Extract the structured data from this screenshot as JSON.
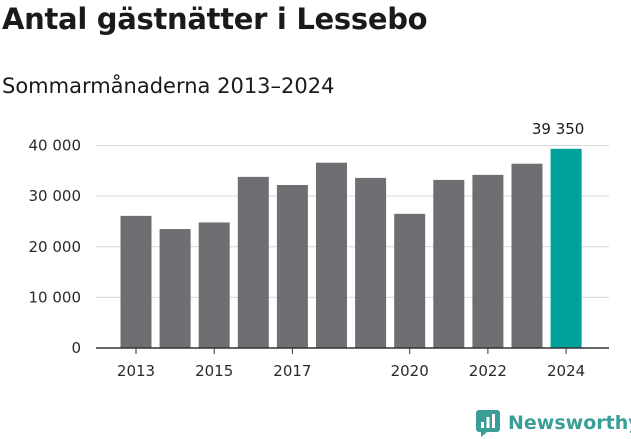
{
  "header": {
    "title": "Antal gästnätter i Lessebo",
    "subtitle": "Sommarmånaderna 2013–2024"
  },
  "brand": {
    "name": "Newsworthy",
    "logo_icon": "bar-chart-logo-icon",
    "color": "#3a9e96"
  },
  "colors": {
    "bar": "#6f6e73",
    "highlight": "#00a19a",
    "grid": "#d9d9d9",
    "axis": "#333333"
  },
  "chart_data": {
    "type": "bar",
    "categories": [
      "2013",
      "2014",
      "2015",
      "2016",
      "2017",
      "2018",
      "2019",
      "2020",
      "2021",
      "2022",
      "2023",
      "2024"
    ],
    "values": [
      26100,
      23500,
      24800,
      33800,
      32200,
      36600,
      33600,
      26500,
      33200,
      34200,
      36400,
      39350
    ],
    "x_tick_labels": [
      "2013",
      "",
      "2015",
      "",
      "2017",
      "",
      "",
      "2020",
      "",
      "2022",
      "",
      "2024"
    ],
    "y_ticks": [
      0,
      10000,
      20000,
      30000,
      40000
    ],
    "y_tick_labels": [
      "0",
      "10 000",
      "20 000",
      "30 000",
      "40 000"
    ],
    "ylim": [
      0,
      41000
    ],
    "highlight_index": 11,
    "highlight_label": "39 350",
    "grid": true,
    "legend": false
  }
}
